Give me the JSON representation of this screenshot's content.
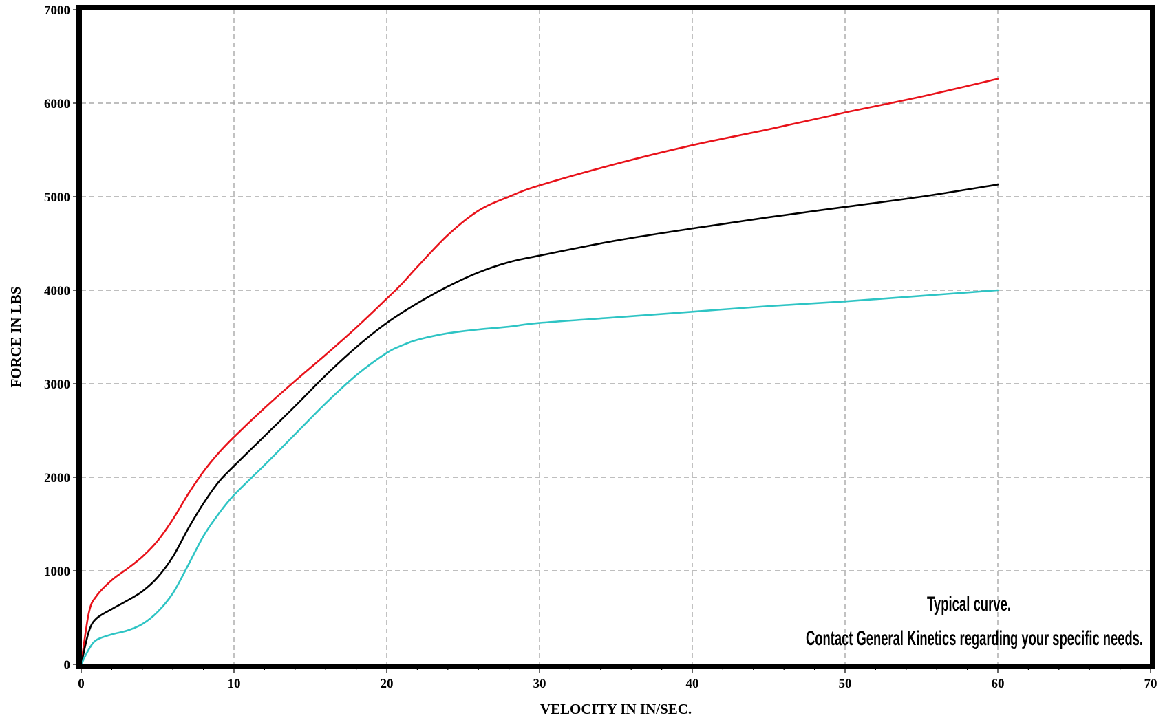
{
  "chart_data": {
    "type": "line",
    "xlabel": "VELOCITY IN IN/SEC.",
    "ylabel": "FORCE IN LBS",
    "xlim": [
      0,
      70
    ],
    "ylim": [
      0,
      7000
    ],
    "xticks": [
      0,
      10,
      20,
      30,
      40,
      50,
      60,
      70
    ],
    "yticks": [
      0,
      1000,
      2000,
      3000,
      4000,
      5000,
      6000,
      7000
    ],
    "grid": true,
    "annotations": [
      "Typical curve.",
      "Contact General Kinetics regarding your specific needs."
    ],
    "series": [
      {
        "color": "#e8121a",
        "x": [
          0,
          0.5,
          1,
          2,
          3,
          4,
          5,
          6,
          7,
          8,
          9,
          10,
          12,
          14,
          16,
          18,
          20,
          21,
          22,
          24,
          26,
          28,
          30,
          35,
          40,
          45,
          50,
          55,
          60
        ],
        "y": [
          0,
          550,
          730,
          900,
          1020,
          1150,
          1320,
          1550,
          1820,
          2060,
          2260,
          2430,
          2740,
          3030,
          3310,
          3600,
          3910,
          4070,
          4250,
          4590,
          4850,
          5000,
          5120,
          5350,
          5550,
          5720,
          5900,
          6070,
          6260
        ]
      },
      {
        "color": "#000000",
        "x": [
          0,
          0.5,
          1,
          2,
          3,
          4,
          5,
          6,
          7,
          8,
          9,
          10,
          12,
          14,
          16,
          18,
          20,
          22,
          24,
          26,
          28,
          30,
          35,
          40,
          45,
          50,
          55,
          60
        ],
        "y": [
          0,
          350,
          490,
          590,
          680,
          780,
          930,
          1150,
          1450,
          1720,
          1950,
          2120,
          2440,
          2760,
          3090,
          3390,
          3650,
          3860,
          4040,
          4190,
          4300,
          4370,
          4530,
          4660,
          4780,
          4890,
          5000,
          5130
        ]
      },
      {
        "color": "#2ec4c4",
        "x": [
          0,
          0.5,
          1,
          2,
          3,
          4,
          5,
          6,
          7,
          8,
          9,
          10,
          12,
          14,
          16,
          18,
          20,
          21,
          22,
          24,
          26,
          28,
          30,
          35,
          40,
          45,
          50,
          55,
          60
        ],
        "y": [
          0,
          160,
          260,
          320,
          360,
          430,
          560,
          760,
          1060,
          1370,
          1610,
          1810,
          2130,
          2460,
          2790,
          3090,
          3330,
          3410,
          3470,
          3540,
          3580,
          3610,
          3650,
          3710,
          3770,
          3830,
          3880,
          3940,
          4000
        ]
      }
    ]
  }
}
